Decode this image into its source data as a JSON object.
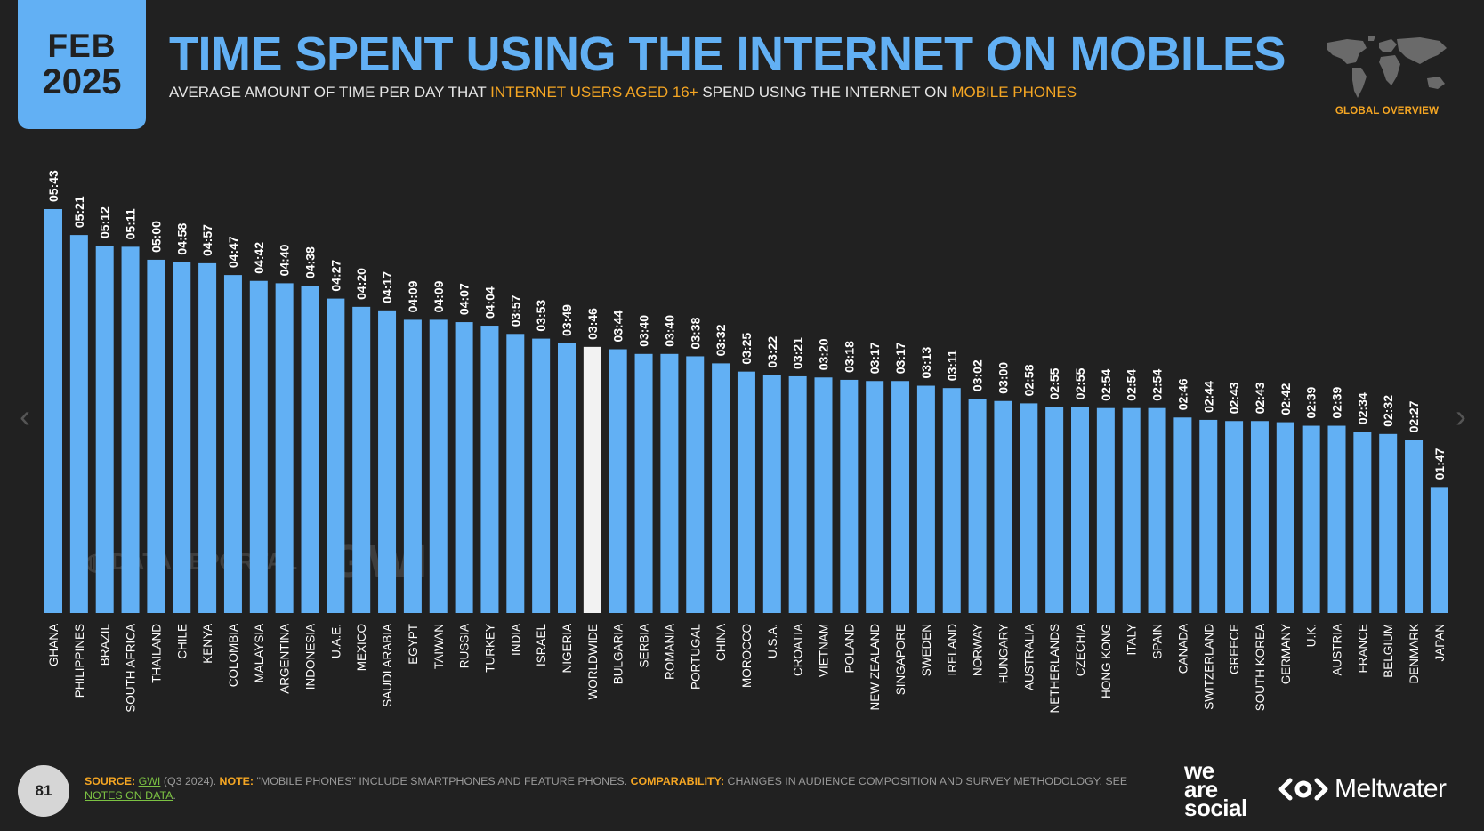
{
  "header": {
    "month": "FEB",
    "year": "2025",
    "title": "TIME SPENT USING THE INTERNET ON MOBILES",
    "subtitle_1": "AVERAGE AMOUNT OF TIME PER DAY THAT ",
    "subtitle_hl_1": "INTERNET USERS AGED 16+",
    "subtitle_2": " SPEND USING THE INTERNET ON ",
    "subtitle_hl_2": "MOBILE PHONES",
    "section_label": "GLOBAL OVERVIEW"
  },
  "watermark": {
    "datareportal": "DATAREPORTAL",
    "gwi": "GWI."
  },
  "footer": {
    "page_number": "81",
    "source_label": "SOURCE:",
    "source_link": "GWI",
    "source_rest": " (Q3 2024). ",
    "note_label": "NOTE:",
    "note_text": " \"MOBILE PHONES\" INCLUDE SMARTPHONES AND FEATURE PHONES. ",
    "comp_label": "COMPARABILITY:",
    "comp_text": " CHANGES IN AUDIENCE COMPOSITION AND SURVEY METHODOLOGY. SEE ",
    "notes_link": "NOTES ON DATA",
    "end": "."
  },
  "logos": {
    "we": "we",
    "are": "are",
    "social": "social",
    "meltwater": "Meltwater"
  },
  "colors": {
    "bar": "#62b0f4",
    "highlight_bar": "#f2f2f2",
    "accent": "#f5a623",
    "background": "#212121"
  },
  "chart_data": {
    "type": "bar",
    "title": "TIME SPENT USING THE INTERNET ON MOBILES",
    "ylim": [
      0,
      343
    ],
    "grid": false,
    "highlight": "WORLDWIDE",
    "categories": [
      "GHANA",
      "PHILIPPINES",
      "BRAZIL",
      "SOUTH AFRICA",
      "THAILAND",
      "CHILE",
      "KENYA",
      "COLOMBIA",
      "MALAYSIA",
      "ARGENTINA",
      "INDONESIA",
      "U.A.E.",
      "MEXICO",
      "SAUDI ARABIA",
      "EGYPT",
      "TAIWAN",
      "RUSSIA",
      "TURKEY",
      "INDIA",
      "ISRAEL",
      "NIGERIA",
      "WORLDWIDE",
      "BULGARIA",
      "SERBIA",
      "ROMANIA",
      "PORTUGAL",
      "CHINA",
      "MOROCCO",
      "U.S.A.",
      "CROATIA",
      "VIETNAM",
      "POLAND",
      "NEW ZEALAND",
      "SINGAPORE",
      "SWEDEN",
      "IRELAND",
      "NORWAY",
      "HUNGARY",
      "AUSTRALIA",
      "NETHERLANDS",
      "CZECHIA",
      "HONG KONG",
      "ITALY",
      "SPAIN",
      "CANADA",
      "SWITZERLAND",
      "GREECE",
      "SOUTH KOREA",
      "GERMANY",
      "U.K.",
      "AUSTRIA",
      "FRANCE",
      "BELGIUM",
      "DENMARK",
      "JAPAN"
    ],
    "labels": [
      "05:43",
      "05:21",
      "05:12",
      "05:11",
      "05:00",
      "04:58",
      "04:57",
      "04:47",
      "04:42",
      "04:40",
      "04:38",
      "04:27",
      "04:20",
      "04:17",
      "04:09",
      "04:09",
      "04:07",
      "04:04",
      "03:57",
      "03:53",
      "03:49",
      "03:46",
      "03:44",
      "03:40",
      "03:40",
      "03:38",
      "03:32",
      "03:25",
      "03:22",
      "03:21",
      "03:20",
      "03:18",
      "03:17",
      "03:17",
      "03:13",
      "03:11",
      "03:02",
      "03:00",
      "02:58",
      "02:55",
      "02:55",
      "02:54",
      "02:54",
      "02:54",
      "02:46",
      "02:44",
      "02:43",
      "02:43",
      "02:42",
      "02:39",
      "02:39",
      "02:34",
      "02:32",
      "02:27",
      "01:47"
    ],
    "values": [
      343,
      321,
      312,
      311,
      300,
      298,
      297,
      287,
      282,
      280,
      278,
      267,
      260,
      257,
      249,
      249,
      247,
      244,
      237,
      233,
      229,
      226,
      224,
      220,
      220,
      218,
      212,
      205,
      202,
      201,
      200,
      198,
      197,
      197,
      193,
      191,
      182,
      180,
      178,
      175,
      175,
      174,
      174,
      174,
      166,
      164,
      163,
      163,
      162,
      159,
      159,
      154,
      152,
      147,
      107
    ]
  }
}
